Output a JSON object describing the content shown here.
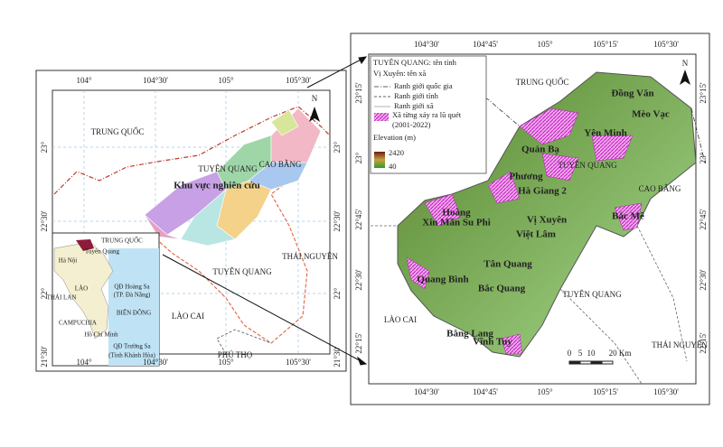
{
  "left_map": {
    "top_ticks": [
      "104°",
      "104°30'",
      "105°",
      "105°30'"
    ],
    "bottom_ticks": [
      "104°",
      "104°30'",
      "105°",
      "105°30'"
    ],
    "left_ticks": [
      "23°",
      "22°30'",
      "22°",
      "21°30'"
    ],
    "right_ticks": [
      "23°",
      "22°30'",
      "22°",
      "21°30'"
    ],
    "labels": [
      "TRUNG QUỐC",
      "CAO BẰNG",
      "TUYÊN QUANG",
      "Khu vực nghiên cứu",
      "THÁI NGUYÊN",
      "TUYÊN QUANG",
      "LÀO CAI",
      "PHÚ THỌ"
    ],
    "north": "N",
    "inset_labels": [
      "TRUNG QUỐC",
      "Tuyên Quang",
      "Hà Nội",
      "LÀO",
      "THÁI LAN",
      "CAMPUCHIA",
      "BIỂN ĐÔNG",
      "QĐ Hoàng Sa",
      "(TP. Đà Nẵng)",
      "Hồ Chí Minh",
      "QĐ Trường Sa",
      "(Tỉnh Khánh Hòa)"
    ]
  },
  "right_map": {
    "top_ticks": [
      "104°30'",
      "104°45'",
      "105°",
      "105°15'",
      "105°30'"
    ],
    "bottom_ticks": [
      "104°30'",
      "104°45'",
      "105°",
      "105°15'",
      "105°30'"
    ],
    "left_ticks": [
      "23°15'",
      "23°",
      "22°45'",
      "22°30'",
      "22°15'"
    ],
    "right_ticks": [
      "23°15'",
      "23°",
      "22°45'",
      "22°30'",
      "22°15'"
    ],
    "legend": {
      "province": "TUYÊN QUANG: tên tỉnh",
      "commune": "Vị Xuyên: tên xã",
      "national_border": "Ranh giới quốc gia",
      "province_border": "Ranh giới tỉnh",
      "commune_border": "Ranh giới xã",
      "flood": "Xã từng xảy ra lũ quét",
      "flood_period": "(2001-2022)",
      "elevation": "Elevation (m)",
      "elevation_max": "2420",
      "elevation_min": "40"
    },
    "labels": [
      "TRUNG QUỐC",
      "Đồng Văn",
      "Mèo Vạc",
      "Yên Minh",
      "Quản Bạ",
      "TUYÊN QUANG",
      "Phương",
      "Hà Giang 2",
      "CAO BẰNG",
      "Bắc Mê",
      "Hoàng",
      "Xín Mần Su Phì",
      "Vị Xuyên",
      "Việt Lâm",
      "Tân Quang",
      "Quang Bình",
      "Bắc Quang",
      "LÀO CAI",
      "Bằng Lang",
      "TUYÊN QUANG",
      "Vĩnh Tuy",
      "THÁI NGUYÊN"
    ],
    "scale": [
      "0",
      "5",
      "10",
      "20 Km"
    ],
    "north": "N"
  }
}
